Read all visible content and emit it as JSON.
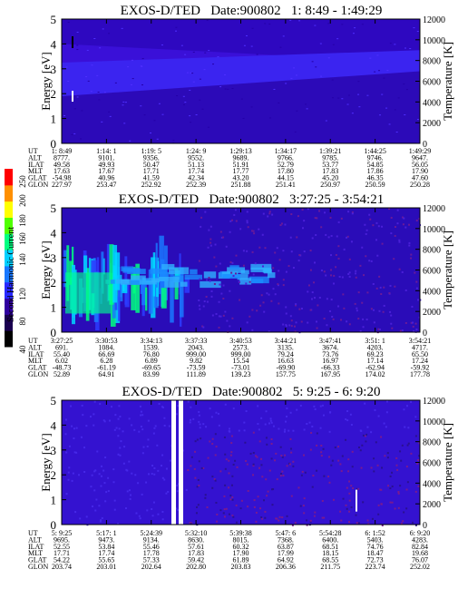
{
  "colorbar": {
    "label": "Second Harmonic Current",
    "ticks": [
      "40",
      "80",
      "120",
      "140",
      "160",
      "180",
      "200",
      "250"
    ],
    "colors": [
      "#000000",
      "#1a0050",
      "#3000a0",
      "#2828ff",
      "#1878ff",
      "#00d0ff",
      "#00ff80",
      "#50ff00",
      "#ffff00",
      "#ff9000",
      "#ff0000"
    ]
  },
  "chart_data": [
    {
      "type": "heatmap",
      "title": "EXOS-D/TED   Date:900802   1: 8:49 - 1:49:29",
      "ylabel": "Energy [eV]",
      "y2label": "Temperature [K]",
      "ylim": [
        0,
        5
      ],
      "y2lim": [
        0,
        12000
      ],
      "yticks": [
        "0",
        "1",
        "2",
        "3",
        "4",
        "5"
      ],
      "y2ticks": [
        "0",
        "2000",
        "4000",
        "6000",
        "8000",
        "10000",
        "12000"
      ],
      "rowlabels": [
        "UT",
        "ALT",
        "ILAT",
        "MLT",
        "GLAT",
        "GLON"
      ],
      "columns": [
        [
          "1: 8:49",
          "8777.",
          "49.58",
          "17.63",
          "-54.98",
          "227.97"
        ],
        [
          "1:14: 1",
          "9101.",
          "49.93",
          "17.67",
          "40.96",
          "253.47"
        ],
        [
          "1:19: 5",
          "9356.",
          "50.47",
          "17.71",
          "41.59",
          "252.92"
        ],
        [
          "1:24: 9",
          "9552.",
          "51.13",
          "17.74",
          "42.34",
          "252.39"
        ],
        [
          "1:29:13",
          "9689.",
          "51.91",
          "17.77",
          "43.20",
          "251.88"
        ],
        [
          "1:34:17",
          "9766.",
          "52.79",
          "17.80",
          "44.15",
          "251.41"
        ],
        [
          "1:39:21",
          "9785.",
          "53.77",
          "17.83",
          "45.20",
          "250.97"
        ],
        [
          "1:44:25",
          "9746.",
          "54.85",
          "17.86",
          "46.35",
          "250.59"
        ],
        [
          "1:49:29",
          "9647.",
          "56.05",
          "17.90",
          "47.60",
          "250.28"
        ]
      ]
    },
    {
      "type": "heatmap",
      "title": "EXOS-D/TED   Date:900802   3:27:25 - 3:54:21",
      "ylabel": "Energy [eV]",
      "y2label": "Temperature [K]",
      "ylim": [
        0,
        5
      ],
      "y2lim": [
        0,
        12000
      ],
      "yticks": [
        "0",
        "1",
        "2",
        "3",
        "4",
        "5"
      ],
      "y2ticks": [
        "0",
        "2000",
        "4000",
        "6000",
        "8000",
        "10000",
        "12000"
      ],
      "rowlabels": [
        "UT",
        "ALT",
        "ILAT",
        "MLT",
        "GLAT",
        "GLON"
      ],
      "columns": [
        [
          "3:27:25",
          "691.",
          "55.40",
          "6.02",
          "-48.73",
          "52.89"
        ],
        [
          "3:30:53",
          "1084.",
          "66.69",
          "6.28",
          "-61.19",
          "64.91"
        ],
        [
          "3:34:13",
          "1539.",
          "76.80",
          "6.89",
          "-69.65",
          "83.99"
        ],
        [
          "3:37:33",
          "2043.",
          "999.00",
          "9.82",
          "-73.59",
          "111.89"
        ],
        [
          "3:40:53",
          "2573.",
          "999.00",
          "15.54",
          "-73.01",
          "139.23"
        ],
        [
          "3:44:21",
          "3135.",
          "79.24",
          "16.63",
          "-69.90",
          "157.75"
        ],
        [
          "3:47:41",
          "3674.",
          "73.76",
          "16.97",
          "-66.33",
          "167.95"
        ],
        [
          "3:51: 1",
          "4203.",
          "69.23",
          "17.14",
          "-62.94",
          "174.02"
        ],
        [
          "3:54:21",
          "4717.",
          "65.50",
          "17.24",
          "-59.92",
          "177.78"
        ]
      ]
    },
    {
      "type": "heatmap",
      "title": "EXOS-D/TED   Date:900802   5: 9:25 - 6: 9:20",
      "ylabel": "Energy [eV]",
      "y2label": "Temperature [K]",
      "ylim": [
        0,
        5
      ],
      "y2lim": [
        0,
        12000
      ],
      "yticks": [
        "0",
        "1",
        "2",
        "3",
        "4",
        "5"
      ],
      "y2ticks": [
        "0",
        "2000",
        "4000",
        "6000",
        "8000",
        "10000",
        "12000"
      ],
      "rowlabels": [
        "UT",
        "ALT",
        "ILAT",
        "MLT",
        "GLAT",
        "GLON"
      ],
      "columns": [
        [
          "5: 9:25",
          "9695.",
          "52.55",
          "17.71",
          "54.22",
          "203.74"
        ],
        [
          "5:17: 1",
          "9473.",
          "53.84",
          "17.74",
          "55.65",
          "203.01"
        ],
        [
          "5:24:39",
          "9134.",
          "55.46",
          "17.78",
          "57.33",
          "202.64"
        ],
        [
          "5:32:10",
          "8630.",
          "57.61",
          "17.83",
          "59.42",
          "202.80"
        ],
        [
          "5:39:38",
          "8015.",
          "60.32",
          "17.90",
          "61.89",
          "203.83"
        ],
        [
          "5:47: 6",
          "7368.",
          "63.87",
          "17.99",
          "64.92",
          "206.36"
        ],
        [
          "5:54:28",
          "6400.",
          "68.51",
          "18.15",
          "68.55",
          "211.75"
        ],
        [
          "6: 1:52",
          "5403.",
          "74.76",
          "18.47",
          "72.73",
          "223.74"
        ],
        [
          "6: 9:20",
          "4283.",
          "82.84",
          "19.68",
          "76.07",
          "252.02"
        ]
      ]
    }
  ]
}
